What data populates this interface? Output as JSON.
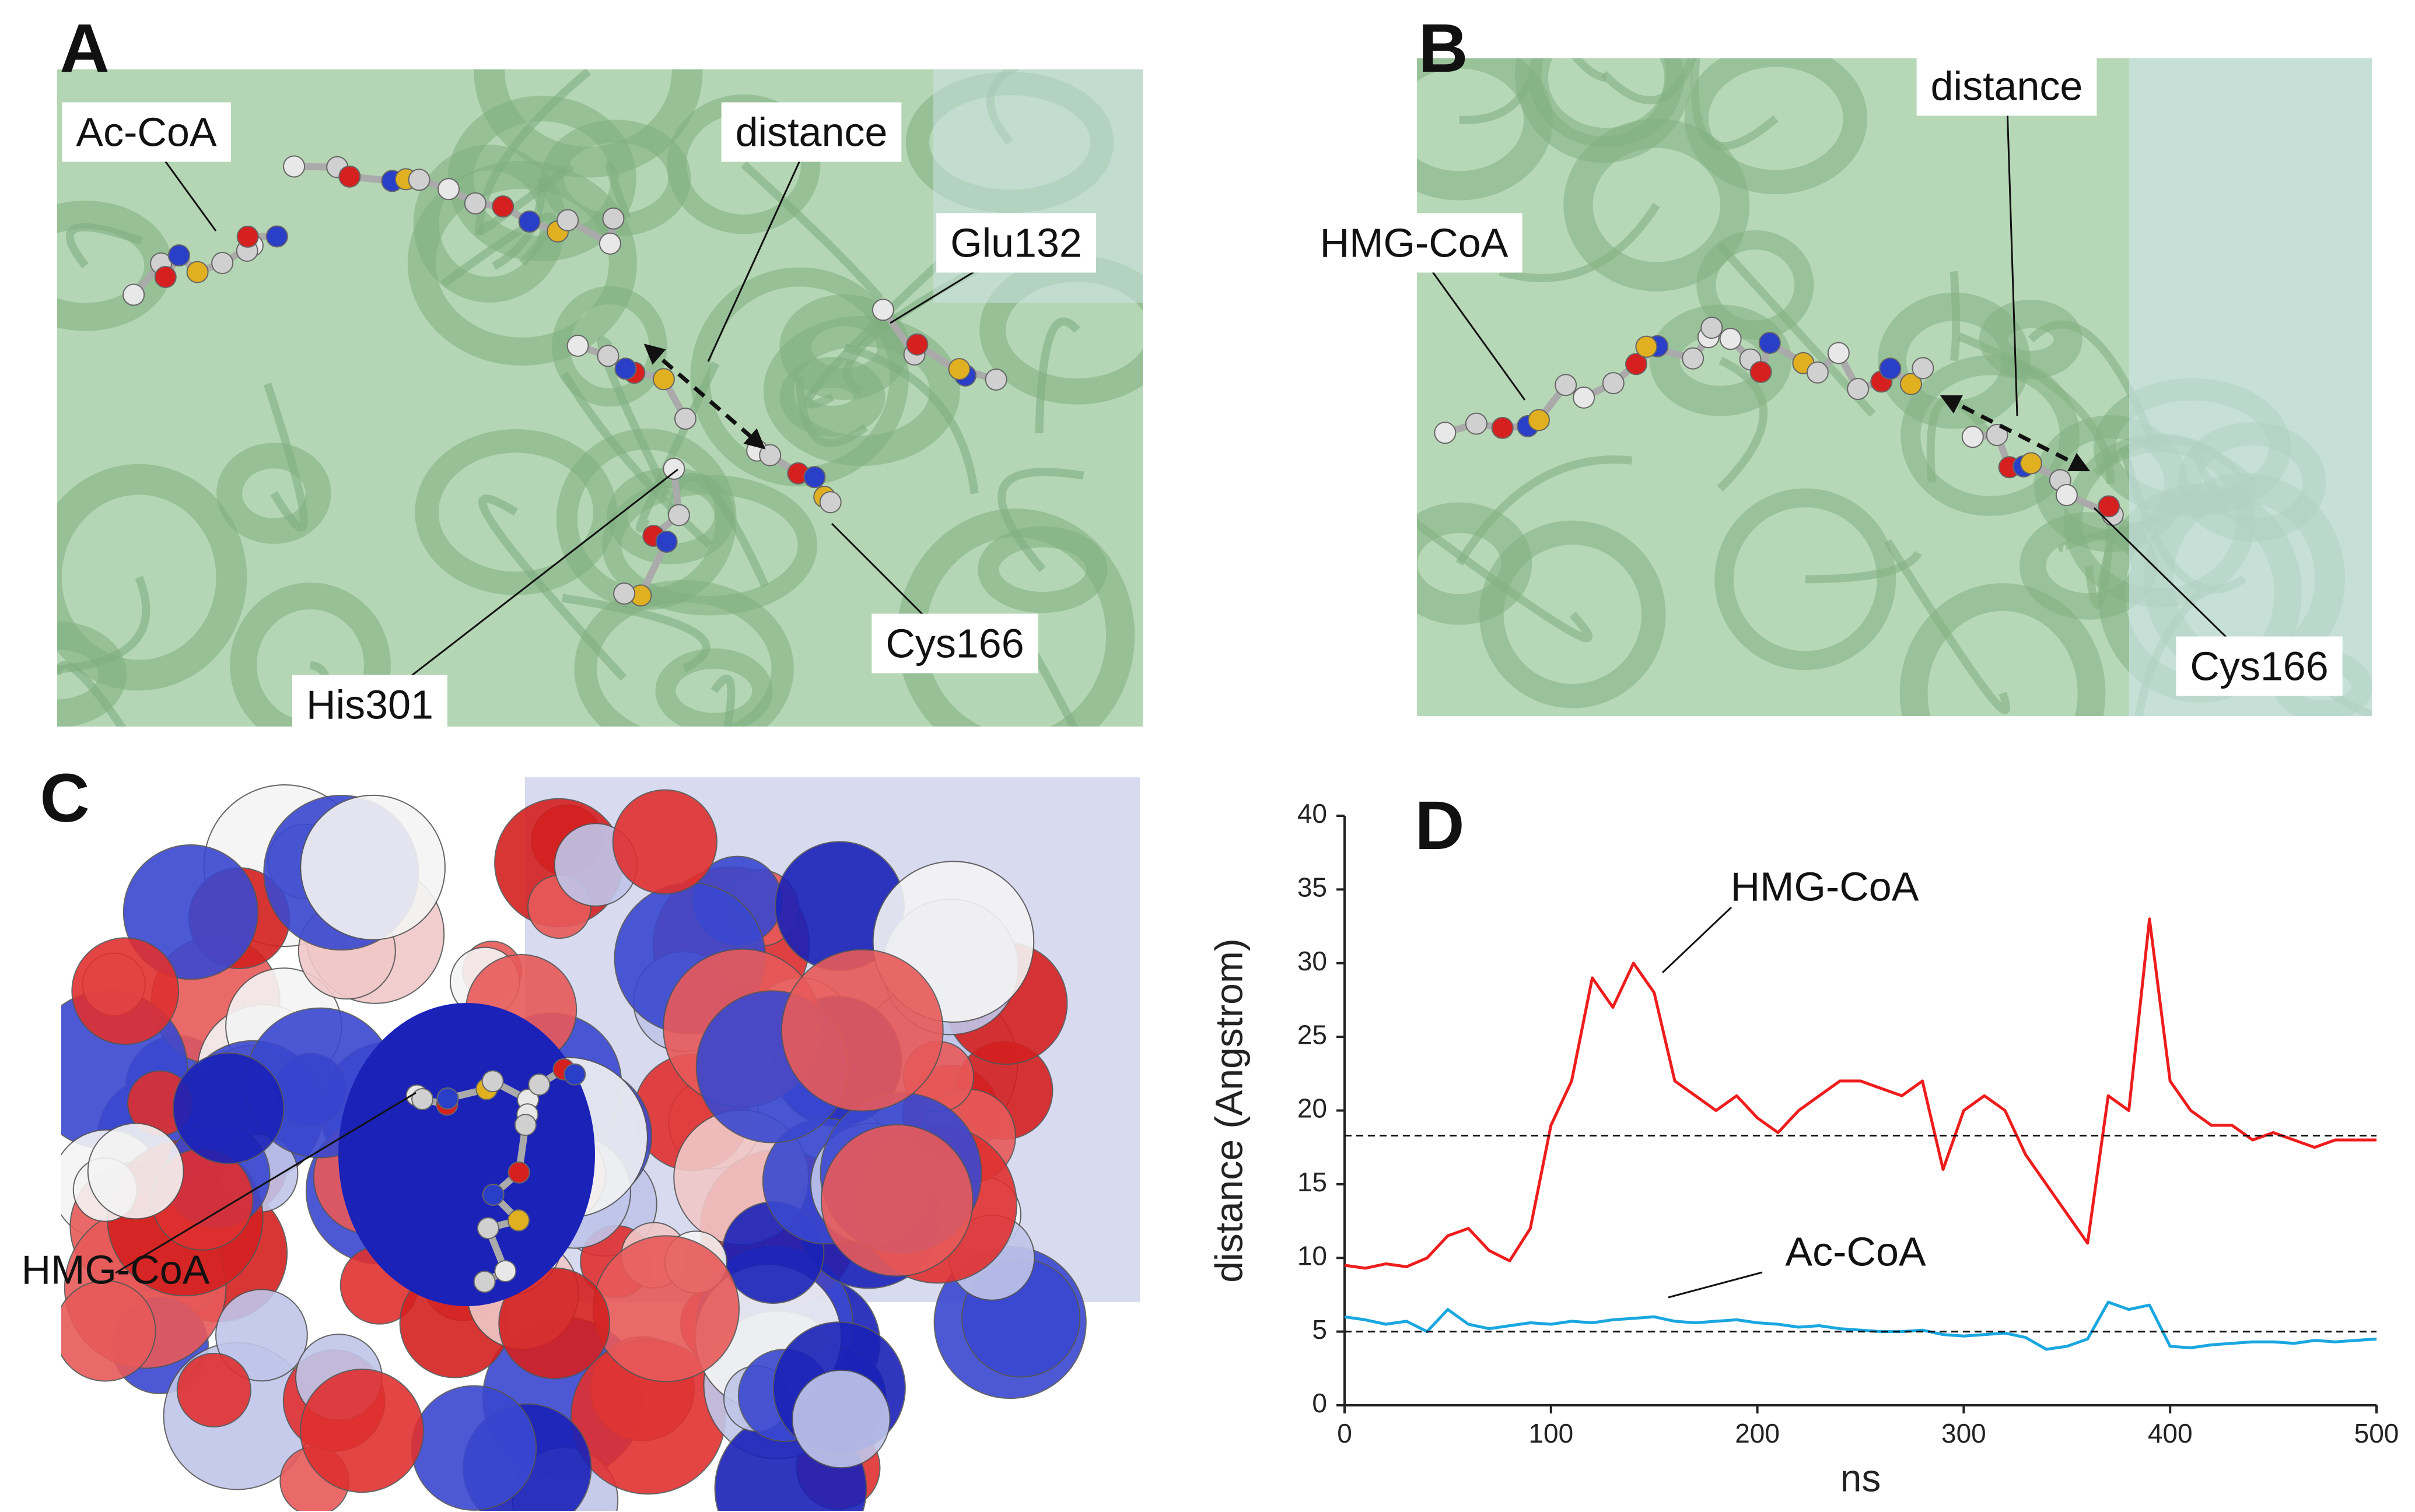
{
  "panels": {
    "A": {
      "letter": "A",
      "labels": [
        "Ac-CoA",
        "distance",
        "Glu132",
        "His301",
        "Cys166"
      ]
    },
    "B": {
      "letter": "B",
      "labels": [
        "distance",
        "HMG-CoA",
        "Cys166"
      ]
    },
    "C": {
      "letter": "C",
      "labels": [
        "HMG-CoA"
      ]
    }
  },
  "chart_data": {
    "type": "line",
    "panel_letter": "D",
    "x_label": "ns",
    "y_label": "distance (Angstrom)",
    "x": [
      0,
      10,
      20,
      30,
      40,
      50,
      60,
      70,
      80,
      90,
      100,
      110,
      120,
      130,
      140,
      150,
      160,
      170,
      180,
      190,
      200,
      210,
      220,
      230,
      240,
      250,
      260,
      270,
      280,
      290,
      300,
      310,
      320,
      330,
      340,
      350,
      360,
      370,
      380,
      390,
      400,
      410,
      420,
      430,
      440,
      450,
      460,
      470,
      480,
      490,
      500
    ],
    "series": [
      {
        "name": "HMG-CoA",
        "color": "#ee1c1c",
        "values": [
          9.5,
          9.3,
          9.6,
          9.4,
          10,
          11.5,
          12,
          10.5,
          9.8,
          12,
          19,
          22,
          29,
          27,
          30,
          28,
          22,
          21,
          20,
          21,
          19.5,
          18.5,
          20,
          21,
          22,
          22,
          21.5,
          21,
          22,
          16,
          20,
          21,
          20,
          17,
          15,
          13,
          11,
          21,
          20,
          33,
          22,
          20,
          19,
          19,
          18,
          18.5,
          18,
          17.5,
          18,
          18,
          18
        ]
      },
      {
        "name": "Ac-CoA",
        "color": "#1aa7e0",
        "values": [
          6,
          5.8,
          5.5,
          5.7,
          5,
          6.5,
          5.5,
          5.2,
          5.4,
          5.6,
          5.5,
          5.7,
          5.6,
          5.8,
          5.9,
          6,
          5.7,
          5.6,
          5.7,
          5.8,
          5.6,
          5.5,
          5.3,
          5.4,
          5.2,
          5.1,
          5,
          5,
          5.1,
          4.8,
          4.7,
          4.8,
          4.9,
          4.6,
          3.8,
          4,
          4.5,
          7,
          6.5,
          6.8,
          4,
          3.9,
          4.1,
          4.2,
          4.3,
          4.3,
          4.2,
          4.4,
          4.3,
          4.4,
          4.5
        ]
      }
    ],
    "reference_lines": [
      18.3,
      5
    ],
    "xlim": [
      0,
      500
    ],
    "xticks": [
      0,
      100,
      200,
      300,
      400,
      500
    ],
    "ylim": [
      0,
      40
    ],
    "yticks": [
      0,
      5,
      10,
      15,
      20,
      25,
      30,
      35,
      40
    ],
    "grid": false
  }
}
